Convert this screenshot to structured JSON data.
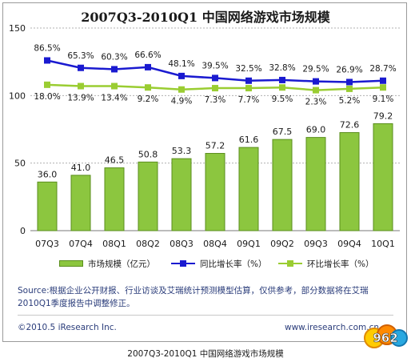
{
  "chart_data": {
    "type": "bar",
    "title": "2007Q3-2010Q1 中国网络游戏市场规模",
    "categories": [
      "07Q3",
      "07Q4",
      "08Q1",
      "08Q2",
      "08Q3",
      "08Q4",
      "09Q1",
      "09Q2",
      "09Q3",
      "09Q4",
      "10Q1"
    ],
    "ylim": [
      0,
      150
    ],
    "yticks": [
      "0",
      "50",
      "100",
      "150"
    ],
    "grid": true,
    "legend_position": "bottom",
    "series": [
      {
        "name": "市场规模（亿元）",
        "type": "bar",
        "color": "#8cc63f",
        "values": [
          36.0,
          41.0,
          46.5,
          50.8,
          53.3,
          57.2,
          61.6,
          67.5,
          69.0,
          72.6,
          79.2
        ],
        "labels": [
          "36.0",
          "41.0",
          "46.5",
          "50.8",
          "53.3",
          "57.2",
          "61.6",
          "67.5",
          "69.0",
          "72.6",
          "79.2"
        ]
      },
      {
        "name": "同比增长率（%）",
        "type": "line",
        "color": "#1a1ad0",
        "marker": "square",
        "values": [
          86.5,
          65.3,
          60.3,
          66.6,
          48.1,
          39.5,
          32.5,
          32.8,
          29.5,
          26.9,
          28.7
        ],
        "labels": [
          "86.5%",
          "65.3%",
          "60.3%",
          "66.6%",
          "48.1%",
          "39.5%",
          "32.5%",
          "32.8%",
          "29.5%",
          "26.9%",
          "28.7%"
        ],
        "plotted_positions": [
          126,
          120.5,
          119.5,
          121,
          114.5,
          113,
          111,
          111.5,
          110.5,
          110,
          111
        ]
      },
      {
        "name": "环比增长率（%）",
        "type": "line",
        "color": "#9acd32",
        "marker": "square",
        "values": [
          18.0,
          13.9,
          13.4,
          9.2,
          4.9,
          7.3,
          7.7,
          9.5,
          2.3,
          5.2,
          9.1
        ],
        "labels": [
          "18.0%",
          "13.9%",
          "13.4%",
          "9.2%",
          "4.9%",
          "7.3%",
          "7.7%",
          "9.5%",
          "2.3%",
          "5.2%",
          "9.1%"
        ],
        "plotted_positions": [
          108,
          107,
          107,
          106,
          104.5,
          105.5,
          105.5,
          106,
          104,
          105,
          106
        ]
      }
    ]
  },
  "footer": {
    "source": "Source:根据企业公开财报、行业访谈及艾瑞统计预测模型估算，仅供参考，部分数据将在艾瑞2010Q1季度报告中调整修正。",
    "copyright": "©2010.5 iResearch Inc.",
    "website": "www.iresearch.com.cn"
  },
  "caption": "2007Q3-2010Q1 中国网络游戏市场规模",
  "logo_text": "962",
  "colors": {
    "bar_fill": "#8cc63f",
    "bar_border": "#5a8e1c",
    "yoy_line": "#1a1ad0",
    "qoq_line": "#9acd32",
    "text_blue": "#2a3c7a"
  }
}
